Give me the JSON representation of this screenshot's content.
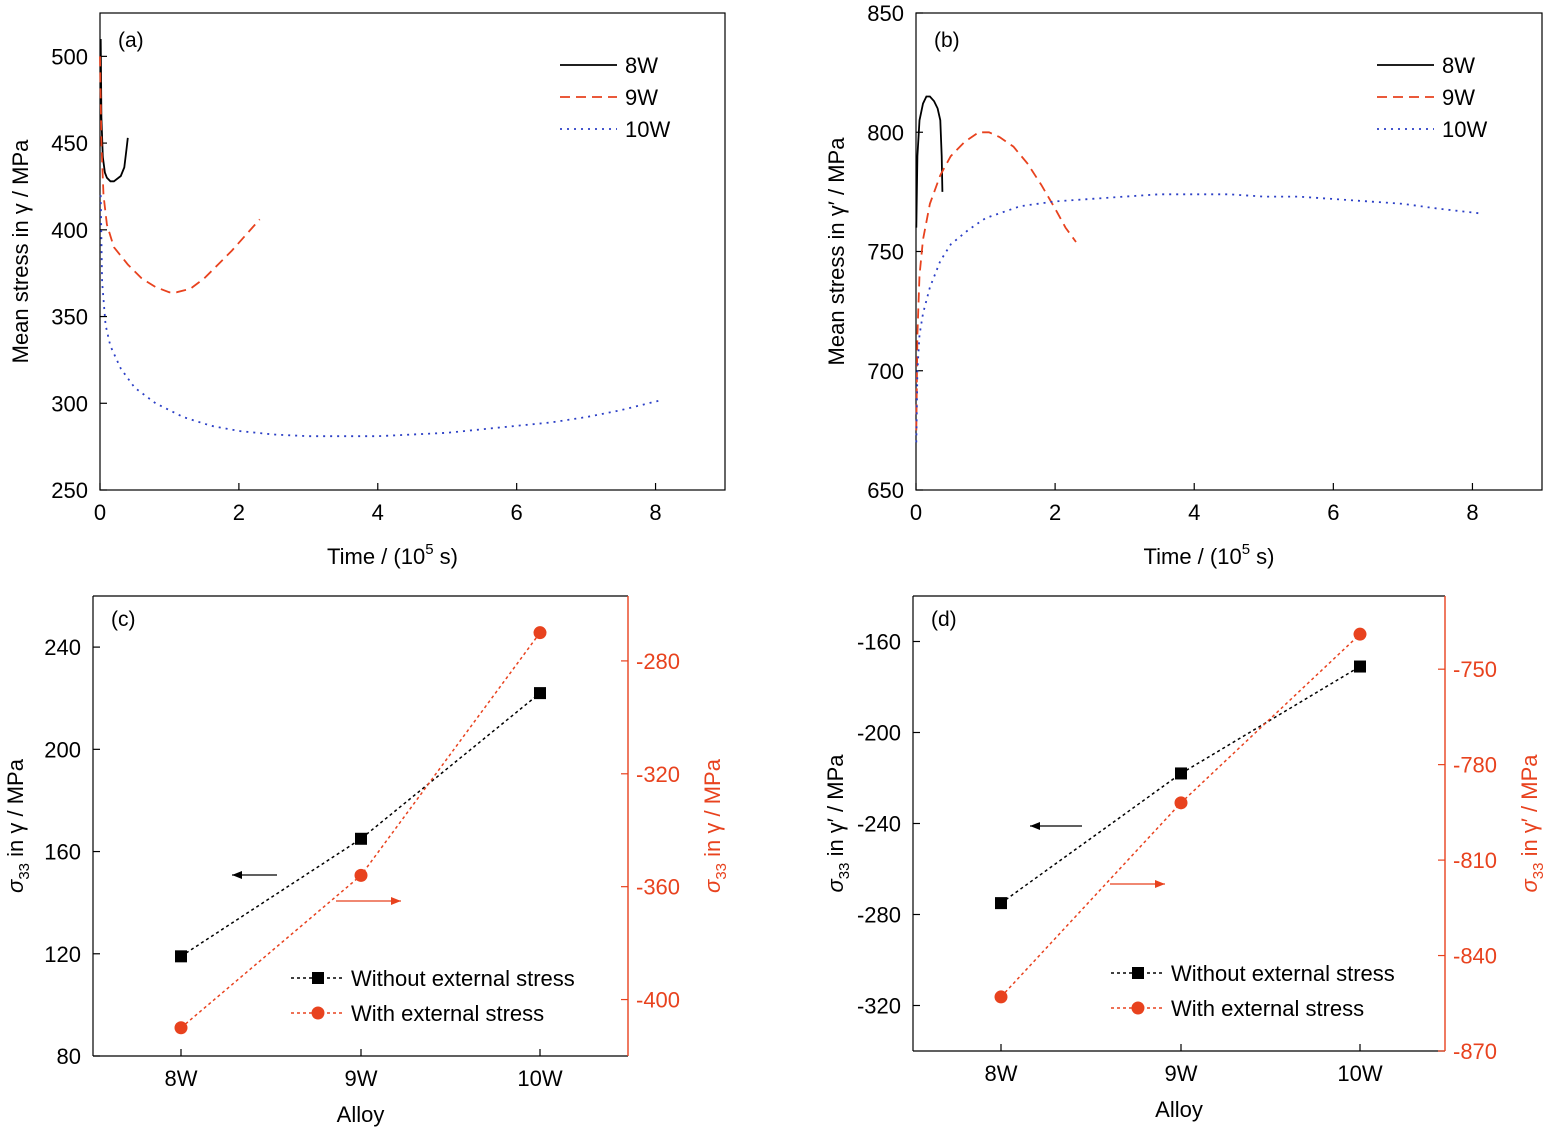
{
  "colors": {
    "black": "#000000",
    "red": "#e8421e",
    "blue": "#2b3fc6"
  },
  "chart_data": [
    {
      "panel": "a",
      "type": "line",
      "label": "(a)",
      "xlabel": "Time / (10",
      "xlabel_sup": "5",
      "xlabel_tail": " s)",
      "ylabel": "Mean stress in γ / MPa",
      "xlim": [
        0,
        9
      ],
      "ylim": [
        250,
        525
      ],
      "xticks": [
        0,
        2,
        4,
        6,
        8
      ],
      "yticks": [
        250,
        300,
        350,
        400,
        450,
        500
      ],
      "legend_position": "top-right",
      "series": [
        {
          "name": "8W",
          "color": "#000000",
          "dash": "solid",
          "points": [
            [
              0.01,
              510
            ],
            [
              0.02,
              465
            ],
            [
              0.04,
              442
            ],
            [
              0.07,
              433
            ],
            [
              0.1,
              430
            ],
            [
              0.15,
              428
            ],
            [
              0.2,
              428
            ],
            [
              0.3,
              431
            ],
            [
              0.35,
              436
            ],
            [
              0.38,
              446
            ],
            [
              0.4,
              453
            ]
          ]
        },
        {
          "name": "9W",
          "color": "#e8421e",
          "dash": "dashed",
          "points": [
            [
              0,
              500
            ],
            [
              0.02,
              450
            ],
            [
              0.05,
              420
            ],
            [
              0.1,
              403
            ],
            [
              0.2,
              390
            ],
            [
              0.4,
              380
            ],
            [
              0.6,
              372
            ],
            [
              0.8,
              367
            ],
            [
              1.0,
              364
            ],
            [
              1.1,
              364
            ],
            [
              1.3,
              366
            ],
            [
              1.5,
              372
            ],
            [
              1.7,
              380
            ],
            [
              1.9,
              388
            ],
            [
              2.1,
              397
            ],
            [
              2.3,
              406
            ]
          ]
        },
        {
          "name": "10W",
          "color": "#2b3fc6",
          "dash": "dotted",
          "points": [
            [
              0.01,
              420
            ],
            [
              0.03,
              370
            ],
            [
              0.08,
              345
            ],
            [
              0.15,
              333
            ],
            [
              0.3,
              320
            ],
            [
              0.5,
              309
            ],
            [
              0.8,
              300
            ],
            [
              1.2,
              292
            ],
            [
              1.6,
              287
            ],
            [
              2,
              284
            ],
            [
              2.5,
              282
            ],
            [
              3,
              281
            ],
            [
              3.5,
              281
            ],
            [
              4,
              281
            ],
            [
              4.5,
              282
            ],
            [
              5,
              283
            ],
            [
              5.5,
              285
            ],
            [
              6,
              287
            ],
            [
              6.5,
              289
            ],
            [
              7,
              292
            ],
            [
              7.5,
              296
            ],
            [
              8.1,
              302
            ]
          ]
        }
      ]
    },
    {
      "panel": "b",
      "type": "line",
      "label": "(b)",
      "xlabel": "Time / (10",
      "xlabel_sup": "5",
      "xlabel_tail": " s)",
      "ylabel": "Mean stress in γ′ / MPa",
      "xlim": [
        0,
        9
      ],
      "ylim": [
        650,
        850
      ],
      "xticks": [
        0,
        2,
        4,
        6,
        8
      ],
      "yticks": [
        650,
        700,
        750,
        800,
        850
      ],
      "legend_position": "top-right",
      "series": [
        {
          "name": "8W",
          "color": "#000000",
          "dash": "solid",
          "points": [
            [
              0.005,
              760
            ],
            [
              0.02,
              790
            ],
            [
              0.05,
              805
            ],
            [
              0.1,
              812
            ],
            [
              0.15,
              815
            ],
            [
              0.2,
              815
            ],
            [
              0.26,
              813
            ],
            [
              0.31,
              810
            ],
            [
              0.35,
              805
            ],
            [
              0.37,
              790
            ],
            [
              0.38,
              775
            ]
          ]
        },
        {
          "name": "9W",
          "color": "#e8421e",
          "dash": "dashed",
          "points": [
            [
              0.005,
              675
            ],
            [
              0.02,
              715
            ],
            [
              0.05,
              740
            ],
            [
              0.1,
              755
            ],
            [
              0.2,
              770
            ],
            [
              0.35,
              782
            ],
            [
              0.5,
              790
            ],
            [
              0.7,
              796
            ],
            [
              0.9,
              800
            ],
            [
              1.05,
              800
            ],
            [
              1.2,
              798
            ],
            [
              1.4,
              794
            ],
            [
              1.6,
              787
            ],
            [
              1.8,
              778
            ],
            [
              2.0,
              768
            ],
            [
              2.15,
              760
            ],
            [
              2.3,
              754
            ]
          ]
        },
        {
          "name": "10W",
          "color": "#2b3fc6",
          "dash": "dotted",
          "points": [
            [
              0.005,
              670
            ],
            [
              0.02,
              700
            ],
            [
              0.05,
              715
            ],
            [
              0.1,
              724
            ],
            [
              0.2,
              735
            ],
            [
              0.35,
              746
            ],
            [
              0.5,
              753
            ],
            [
              0.75,
              759
            ],
            [
              1,
              764
            ],
            [
              1.5,
              769
            ],
            [
              2,
              771
            ],
            [
              2.5,
              772
            ],
            [
              3,
              773
            ],
            [
              3.5,
              774
            ],
            [
              4,
              774
            ],
            [
              4.5,
              774
            ],
            [
              5,
              773
            ],
            [
              5.5,
              773
            ],
            [
              6,
              772
            ],
            [
              6.5,
              771
            ],
            [
              7,
              770
            ],
            [
              7.5,
              768
            ],
            [
              8.1,
              766
            ]
          ]
        }
      ]
    },
    {
      "panel": "c",
      "type": "line",
      "label": "(c)",
      "xlabel": "Alloy",
      "categories": [
        "8W",
        "9W",
        "10W"
      ],
      "ylabel_left": "σ33 in γ / MPa",
      "ylabel_left_sym": "σ",
      "ylabel_left_sub": "33",
      "ylabel_left_tail": " in γ / MPa",
      "ylabel_right": "σ33 in γ / MPa",
      "ylabel_right_sym": "σ",
      "ylabel_right_sub": "33",
      "ylabel_right_tail": " in γ / MPa",
      "ylim_left": [
        80,
        260
      ],
      "yticks_left": [
        80,
        120,
        160,
        200,
        240
      ],
      "ylim_right": [
        -420,
        -257
      ],
      "yticks_right": [
        -400,
        -360,
        -320,
        -280
      ],
      "legend_position": "bottom-right",
      "series": [
        {
          "name": "Without external stress",
          "axis": "left",
          "color": "#000000",
          "marker": "square",
          "values": [
            119,
            165,
            222
          ]
        },
        {
          "name": "With external stress",
          "axis": "right",
          "color": "#e8421e",
          "marker": "circle",
          "values": [
            -410,
            -356,
            -270
          ]
        }
      ]
    },
    {
      "panel": "d",
      "type": "line",
      "label": "(d)",
      "xlabel": "Alloy",
      "categories": [
        "8W",
        "9W",
        "10W"
      ],
      "ylabel_left": "σ33 in γ′ / MPa",
      "ylabel_left_sym": "σ",
      "ylabel_left_sub": "33",
      "ylabel_left_tail": " in γ′ / MPa",
      "ylabel_right": "σ33 in γ′ / MPa",
      "ylabel_right_sym": "σ",
      "ylabel_right_sub": "33",
      "ylabel_right_tail": " in γ′ / MPa",
      "ylim_left": [
        -340,
        -140
      ],
      "yticks_left": [
        -320,
        -280,
        -240,
        -200,
        -160
      ],
      "ylim_right": [
        -870,
        -727
      ],
      "yticks_right": [
        -870,
        -840,
        -810,
        -780,
        -750
      ],
      "legend_position": "bottom-right",
      "series": [
        {
          "name": "Without external stress",
          "axis": "left",
          "color": "#000000",
          "marker": "square",
          "values": [
            -275,
            -218,
            -171
          ]
        },
        {
          "name": "With external stress",
          "axis": "right",
          "color": "#e8421e",
          "marker": "circle",
          "values": [
            -853,
            -792,
            -739
          ]
        }
      ]
    }
  ]
}
